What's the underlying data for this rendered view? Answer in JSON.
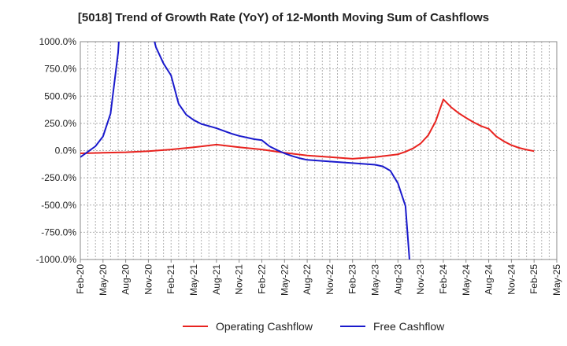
{
  "chart_data": {
    "type": "line",
    "title": "[5018]  Trend of Growth Rate (YoY) of 12-Month Moving Sum of Cashflows",
    "xlabel": "",
    "ylabel": "",
    "ylim": [
      -1000,
      1000
    ],
    "y_ticks": [
      "1000.0%",
      "750.0%",
      "500.0%",
      "250.0%",
      "0.0%",
      "-250.0%",
      "-500.0%",
      "-750.0%",
      "-1000.0%"
    ],
    "y_tick_values": [
      1000,
      750,
      500,
      250,
      0,
      -250,
      -500,
      -750,
      -1000
    ],
    "x_ticks": [
      "Feb-20",
      "May-20",
      "Aug-20",
      "Nov-20",
      "Feb-21",
      "May-21",
      "Aug-21",
      "Nov-21",
      "Feb-22",
      "May-22",
      "Aug-22",
      "Nov-22",
      "Feb-23",
      "May-23",
      "Aug-23",
      "Nov-23",
      "Feb-24",
      "May-24",
      "Aug-24",
      "Nov-24",
      "Feb-25",
      "May-25"
    ],
    "grid": true,
    "legend_position": "bottom",
    "series": [
      {
        "name": "Operating Cashflow",
        "color": "#e8231f",
        "points": [
          [
            "2020-02",
            -25
          ],
          [
            "2020-05",
            -20
          ],
          [
            "2020-08",
            -15
          ],
          [
            "2020-11",
            -5
          ],
          [
            "2021-02",
            10
          ],
          [
            "2021-05",
            30
          ],
          [
            "2021-08",
            55
          ],
          [
            "2021-11",
            30
          ],
          [
            "2022-02",
            10
          ],
          [
            "2022-05",
            -20
          ],
          [
            "2022-08",
            -45
          ],
          [
            "2022-11",
            -60
          ],
          [
            "2023-02",
            -75
          ],
          [
            "2023-05",
            -60
          ],
          [
            "2023-08",
            -35
          ],
          [
            "2023-09",
            -10
          ],
          [
            "2023-10",
            20
          ],
          [
            "2023-11",
            65
          ],
          [
            "2023-12",
            140
          ],
          [
            "2024-01",
            270
          ],
          [
            "2024-02",
            470
          ],
          [
            "2024-03",
            400
          ],
          [
            "2024-04",
            345
          ],
          [
            "2024-05",
            300
          ],
          [
            "2024-06",
            260
          ],
          [
            "2024-07",
            225
          ],
          [
            "2024-08",
            200
          ],
          [
            "2024-09",
            130
          ],
          [
            "2024-10",
            85
          ],
          [
            "2024-11",
            50
          ],
          [
            "2024-12",
            25
          ],
          [
            "2025-01",
            8
          ],
          [
            "2025-02",
            -5
          ]
        ]
      },
      {
        "name": "Free Cashflow",
        "color": "#1a1acc",
        "points": [
          [
            "2020-02",
            -60
          ],
          [
            "2020-03",
            -10
          ],
          [
            "2020-04",
            40
          ],
          [
            "2020-05",
            130
          ],
          [
            "2020-06",
            340
          ],
          [
            "2020-07",
            900
          ],
          [
            "2020-07-05",
            1050
          ],
          [
            "2020-11-20",
            1050
          ],
          [
            "2020-12",
            950
          ],
          [
            "2021-01",
            800
          ],
          [
            "2021-02",
            690
          ],
          [
            "2021-03",
            430
          ],
          [
            "2021-04",
            330
          ],
          [
            "2021-05",
            280
          ],
          [
            "2021-06",
            245
          ],
          [
            "2021-07",
            225
          ],
          [
            "2021-08",
            205
          ],
          [
            "2021-09",
            180
          ],
          [
            "2021-10",
            155
          ],
          [
            "2021-11",
            135
          ],
          [
            "2021-12",
            120
          ],
          [
            "2022-01",
            105
          ],
          [
            "2022-02",
            95
          ],
          [
            "2022-03",
            40
          ],
          [
            "2022-04",
            5
          ],
          [
            "2022-05",
            -25
          ],
          [
            "2022-06",
            -50
          ],
          [
            "2022-07",
            -70
          ],
          [
            "2022-08",
            -85
          ],
          [
            "2022-11",
            -100
          ],
          [
            "2023-02",
            -115
          ],
          [
            "2023-05",
            -130
          ],
          [
            "2023-06",
            -145
          ],
          [
            "2023-07",
            -185
          ],
          [
            "2023-08",
            -300
          ],
          [
            "2023-09",
            -510
          ],
          [
            "2023-09-20",
            -1100
          ]
        ]
      }
    ]
  }
}
